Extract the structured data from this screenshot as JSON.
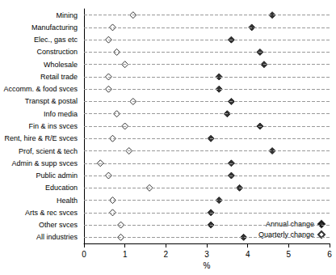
{
  "chart_data": {
    "type": "scatter",
    "orientation": "horizontal",
    "x_label": "%",
    "categories": [
      "Mining",
      "Manufacturing",
      "Elec., gas etc",
      "Construction",
      "Wholesale",
      "Retail trade",
      "Accomm. & food svces",
      "Transpt & postal",
      "Info media",
      "Fin & ins svces",
      "Rent, hire & R/E svces",
      "Prof, scient & tech",
      "Admin & supp svces",
      "Public admin",
      "Education",
      "Health",
      "Arts & rec svces",
      "Other svces",
      "All industries"
    ],
    "series": [
      {
        "name": "Annual change",
        "color": "#000000",
        "marker": "diamond",
        "values": [
          4.6,
          4.1,
          3.6,
          4.3,
          4.4,
          3.3,
          3.3,
          3.6,
          3.5,
          4.3,
          3.1,
          4.6,
          3.6,
          3.6,
          3.8,
          3.3,
          3.1,
          3.1,
          3.9
        ]
      },
      {
        "name": "Quarterly change",
        "color": "#000000",
        "marker": "hollow_diamond",
        "values": [
          1.2,
          0.7,
          0.6,
          0.8,
          1.0,
          0.6,
          0.6,
          1.2,
          0.8,
          1.0,
          0.7,
          1.1,
          0.4,
          0.6,
          1.6,
          0.7,
          0.7,
          0.9,
          0.9
        ]
      }
    ],
    "xlim": [
      0,
      6
    ],
    "xticks": [
      0,
      1,
      2,
      3,
      4,
      5,
      6
    ],
    "grid": true,
    "legend": "lower right"
  }
}
